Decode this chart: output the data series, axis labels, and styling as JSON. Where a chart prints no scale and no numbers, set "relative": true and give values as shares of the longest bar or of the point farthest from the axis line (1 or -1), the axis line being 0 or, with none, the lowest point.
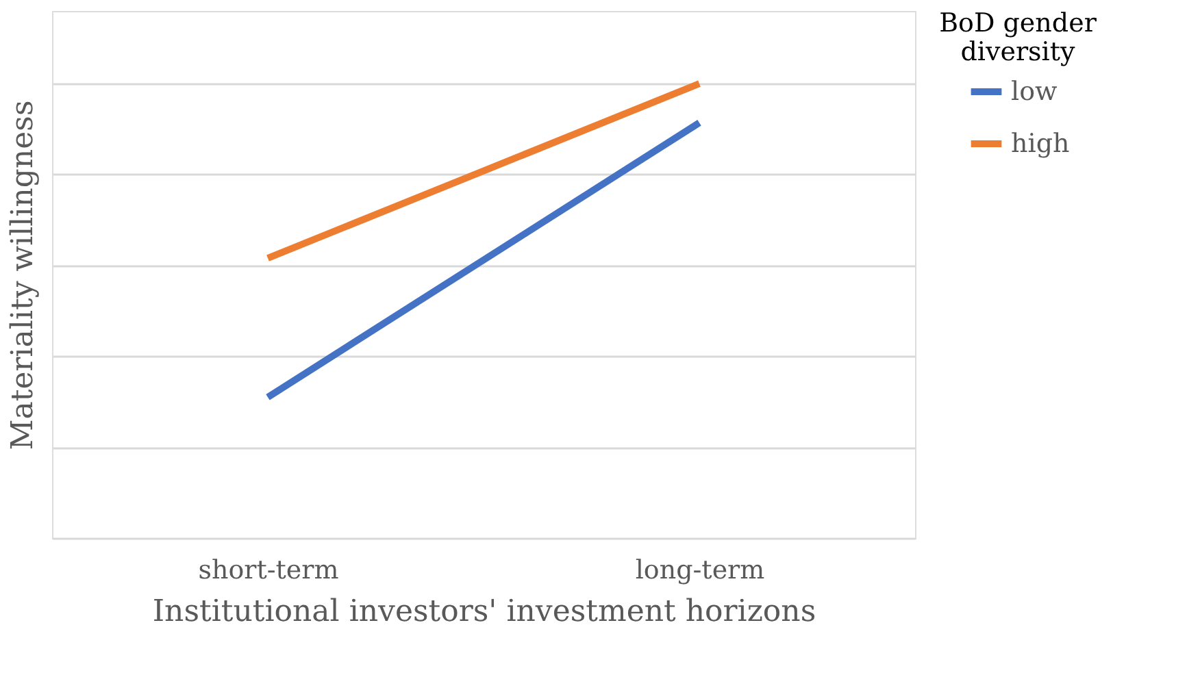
{
  "chart_data": {
    "type": "line",
    "relative": true,
    "xlabel": "Institutional investors' investment horizons",
    "ylabel": "Materiality willingness",
    "legend_title": "BoD gender diversity",
    "categories": [
      "short-term",
      "long-term"
    ],
    "grid": "y",
    "legend": "right",
    "marker": "none",
    "line_style": "solid",
    "series": [
      {
        "name": "low",
        "color": "#4472c4",
        "values": [
          0.31,
          0.914
        ]
      },
      {
        "name": "high",
        "color": "#ed7d31",
        "values": [
          0.616,
          1
        ]
      }
    ]
  }
}
